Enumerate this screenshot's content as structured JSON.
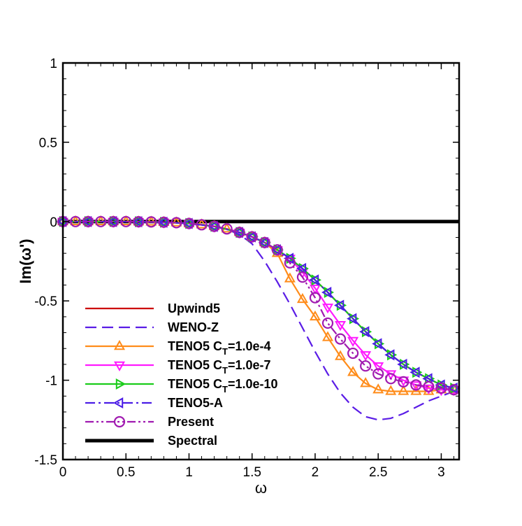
{
  "chart_data": {
    "type": "line",
    "title": "",
    "xlabel": "ω",
    "ylabel": "Im(ω')",
    "xlim": [
      0,
      3.14159
    ],
    "ylim": [
      -1.5,
      1
    ],
    "xticks": [
      0,
      0.5,
      1,
      1.5,
      2,
      2.5,
      3
    ],
    "xtick_labels": [
      "0",
      "0.5",
      "1",
      "1.5",
      "2",
      "2.5",
      "3"
    ],
    "yticks": [
      -1.5,
      -1,
      -0.5,
      0,
      0.5,
      1
    ],
    "ytick_labels": [
      "-1.5",
      "-1",
      "-0.5",
      "0",
      "0.5",
      "1"
    ],
    "legend_position": "lower-left",
    "series": [
      {
        "name": "Upwind5",
        "name_main": "Upwind5",
        "name_sub": "",
        "name_tail": "",
        "color": "#cc0000",
        "dash": "none",
        "marker": "none",
        "x": [
          0,
          0.2,
          0.4,
          0.6,
          0.8,
          1.0,
          1.1,
          1.2,
          1.3,
          1.4,
          1.5,
          1.6,
          1.7,
          1.8,
          1.9,
          2.0,
          2.1,
          2.2,
          2.3,
          2.4,
          2.5,
          2.6,
          2.7,
          2.8,
          2.9,
          3.0,
          3.1
        ],
        "values": [
          0,
          0,
          0,
          -0.001,
          -0.004,
          -0.012,
          -0.02,
          -0.03,
          -0.046,
          -0.068,
          -0.096,
          -0.132,
          -0.178,
          -0.232,
          -0.296,
          -0.368,
          -0.446,
          -0.528,
          -0.612,
          -0.694,
          -0.77,
          -0.84,
          -0.9,
          -0.95,
          -0.99,
          -1.03,
          -1.05
        ]
      },
      {
        "name": "WENO-Z",
        "name_main": "WENO-Z",
        "name_sub": "",
        "name_tail": "",
        "color": "#5a1ce6",
        "dash": "16,8",
        "marker": "none",
        "x": [
          0,
          0.5,
          1.0,
          1.2,
          1.3,
          1.4,
          1.5,
          1.6,
          1.7,
          1.8,
          1.9,
          2.0,
          2.1,
          2.2,
          2.3,
          2.4,
          2.5,
          2.6,
          2.7,
          2.8,
          2.9,
          3.0,
          3.1
        ],
        "values": [
          0,
          0,
          -0.01,
          -0.03,
          -0.05,
          -0.08,
          -0.14,
          -0.25,
          -0.38,
          -0.52,
          -0.67,
          -0.82,
          -0.96,
          -1.08,
          -1.17,
          -1.23,
          -1.25,
          -1.24,
          -1.21,
          -1.17,
          -1.13,
          -1.1,
          -1.07
        ]
      },
      {
        "name": "TENO5 CT=1.0e-4",
        "name_main": "TENO5 C",
        "name_sub": "T",
        "name_tail": "=1.0e-4",
        "color": "#ff8c1a",
        "dash": "none",
        "marker": "triangle-up",
        "x": [
          0,
          0.1,
          0.2,
          0.3,
          0.4,
          0.5,
          0.6,
          0.7,
          0.8,
          0.9,
          1.0,
          1.1,
          1.2,
          1.3,
          1.4,
          1.5,
          1.6,
          1.7,
          1.8,
          1.9,
          2.0,
          2.1,
          2.2,
          2.3,
          2.4,
          2.5,
          2.6,
          2.7,
          2.8,
          2.9,
          3.0,
          3.1
        ],
        "values": [
          0,
          0,
          0,
          0,
          0,
          0,
          -0.001,
          -0.002,
          -0.004,
          -0.007,
          -0.012,
          -0.02,
          -0.03,
          -0.046,
          -0.068,
          -0.096,
          -0.132,
          -0.2,
          -0.36,
          -0.49,
          -0.6,
          -0.73,
          -0.85,
          -0.95,
          -1.02,
          -1.06,
          -1.07,
          -1.07,
          -1.07,
          -1.07,
          -1.06,
          -1.06
        ]
      },
      {
        "name": "TENO5 CT=1.0e-7",
        "name_main": "TENO5 C",
        "name_sub": "T",
        "name_tail": "=1.0e-7",
        "color": "#ff1aff",
        "dash": "none",
        "marker": "triangle-down",
        "x": [
          0,
          0.2,
          0.4,
          0.6,
          0.8,
          1.0,
          1.2,
          1.4,
          1.5,
          1.6,
          1.7,
          1.8,
          1.9,
          2.0,
          2.1,
          2.2,
          2.3,
          2.4,
          2.5,
          2.6,
          2.7,
          2.8,
          2.9,
          3.0,
          3.1
        ],
        "values": [
          0,
          0,
          0,
          -0.001,
          -0.004,
          -0.012,
          -0.03,
          -0.068,
          -0.096,
          -0.132,
          -0.178,
          -0.232,
          -0.32,
          -0.42,
          -0.54,
          -0.65,
          -0.75,
          -0.84,
          -0.91,
          -0.96,
          -1.0,
          -1.03,
          -1.05,
          -1.06,
          -1.06
        ]
      },
      {
        "name": "TENO5 CT=1.0e-10",
        "name_main": "TENO5 C",
        "name_sub": "T",
        "name_tail": "=1.0e-10",
        "color": "#1acc1a",
        "dash": "none",
        "marker": "triangle-right",
        "x": [
          0,
          0.2,
          0.4,
          0.6,
          0.8,
          1.0,
          1.2,
          1.4,
          1.5,
          1.6,
          1.7,
          1.8,
          1.9,
          2.0,
          2.1,
          2.2,
          2.3,
          2.4,
          2.5,
          2.6,
          2.7,
          2.8,
          2.9,
          3.0,
          3.1
        ],
        "values": [
          0,
          0,
          0,
          -0.001,
          -0.004,
          -0.012,
          -0.03,
          -0.068,
          -0.096,
          -0.132,
          -0.178,
          -0.232,
          -0.296,
          -0.368,
          -0.446,
          -0.528,
          -0.612,
          -0.694,
          -0.77,
          -0.84,
          -0.9,
          -0.95,
          -0.99,
          -1.03,
          -1.05
        ]
      },
      {
        "name": "TENO5-A",
        "name_main": "TENO5-A",
        "name_sub": "",
        "name_tail": "",
        "color": "#4b1ce6",
        "dash": "14,5,3,5",
        "marker": "triangle-left",
        "x": [
          0,
          0.2,
          0.4,
          0.6,
          0.8,
          1.0,
          1.2,
          1.4,
          1.5,
          1.6,
          1.7,
          1.8,
          1.9,
          2.0,
          2.1,
          2.2,
          2.3,
          2.4,
          2.5,
          2.6,
          2.7,
          2.8,
          2.9,
          3.0,
          3.1
        ],
        "values": [
          0,
          0,
          0,
          -0.001,
          -0.004,
          -0.012,
          -0.03,
          -0.068,
          -0.096,
          -0.132,
          -0.178,
          -0.232,
          -0.296,
          -0.368,
          -0.446,
          -0.528,
          -0.612,
          -0.694,
          -0.77,
          -0.84,
          -0.9,
          -0.95,
          -0.99,
          -1.03,
          -1.05
        ]
      },
      {
        "name": "Present",
        "name_main": "Present",
        "name_sub": "",
        "name_tail": "",
        "color": "#a01ab0",
        "dash": "12,4,3,4,3,4",
        "marker": "circle",
        "x": [
          0,
          0.1,
          0.2,
          0.3,
          0.4,
          0.5,
          0.6,
          0.7,
          0.8,
          0.9,
          1.0,
          1.1,
          1.2,
          1.3,
          1.4,
          1.5,
          1.6,
          1.7,
          1.8,
          1.9,
          2.0,
          2.1,
          2.2,
          2.3,
          2.4,
          2.5,
          2.6,
          2.7,
          2.8,
          2.9,
          3.0,
          3.1
        ],
        "values": [
          0,
          0,
          0,
          0,
          0,
          0,
          -0.001,
          -0.002,
          -0.004,
          -0.007,
          -0.012,
          -0.02,
          -0.03,
          -0.046,
          -0.068,
          -0.096,
          -0.132,
          -0.178,
          -0.26,
          -0.35,
          -0.48,
          -0.64,
          -0.74,
          -0.83,
          -0.91,
          -0.96,
          -0.99,
          -1.01,
          -1.03,
          -1.04,
          -1.05,
          -1.06
        ]
      },
      {
        "name": "Spectral",
        "name_main": "Spectral",
        "name_sub": "",
        "name_tail": "",
        "color": "#000000",
        "dash": "none",
        "marker": "none",
        "thick": true,
        "x": [
          0,
          3.14159
        ],
        "values": [
          0,
          0
        ]
      }
    ]
  }
}
